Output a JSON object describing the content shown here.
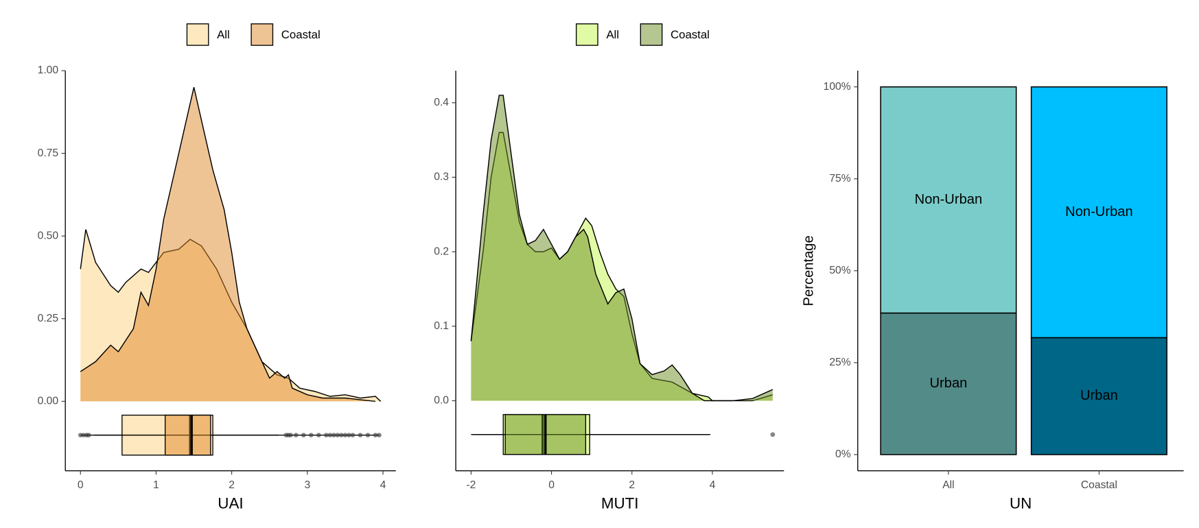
{
  "chart_data": [
    {
      "type": "density",
      "xlabel": "UAI",
      "xlim": [
        -0.2,
        4.17
      ],
      "xticks": [
        0,
        1,
        2,
        3,
        4
      ],
      "ylim": [
        -0.21,
        1.0
      ],
      "yticks": [
        {
          "value": 0,
          "label": "0.00"
        },
        {
          "value": 0.25,
          "label": "0.25"
        },
        {
          "value": 0.5,
          "label": "0.50"
        },
        {
          "value": 0.75,
          "label": "0.75"
        },
        {
          "value": 1,
          "label": "1.00"
        }
      ],
      "series": [
        {
          "name": "All",
          "color": "#fdd995",
          "opacity": 0.6,
          "x": [
            0,
            0.07,
            0.2,
            0.4,
            0.5,
            0.6,
            0.8,
            0.9,
            1.0,
            1.1,
            1.3,
            1.45,
            1.6,
            1.8,
            2.0,
            2.2,
            2.4,
            2.6,
            2.75,
            2.9,
            3.1,
            3.3,
            3.5,
            3.7,
            3.9,
            3.97
          ],
          "values": [
            0.4,
            0.52,
            0.42,
            0.35,
            0.33,
            0.36,
            0.4,
            0.39,
            0.42,
            0.45,
            0.46,
            0.49,
            0.47,
            0.4,
            0.3,
            0.22,
            0.12,
            0.08,
            0.07,
            0.04,
            0.03,
            0.015,
            0.02,
            0.01,
            0.015,
            0
          ],
          "box": {
            "low": 0,
            "q1": 0.55,
            "median": 1.45,
            "q3": 1.75,
            "high": 3.95
          },
          "outliers": [
            0,
            0.04,
            0.08,
            0.11,
            2.72,
            2.75,
            2.78,
            2.85,
            2.95,
            3.05,
            3.15,
            3.25,
            3.3,
            3.35,
            3.4,
            3.45,
            3.5,
            3.55,
            3.6,
            3.7,
            3.8,
            3.9,
            3.95
          ]
        },
        {
          "name": "Coastal",
          "color": "#e08a2c",
          "opacity": 0.5,
          "x": [
            0,
            0.2,
            0.4,
            0.5,
            0.7,
            0.8,
            0.9,
            1.0,
            1.1,
            1.25,
            1.4,
            1.5,
            1.6,
            1.75,
            1.9,
            2.0,
            2.1,
            2.2,
            2.4,
            2.5,
            2.6,
            2.7,
            2.75,
            2.8,
            3.0,
            3.2,
            3.5,
            3.9
          ],
          "values": [
            0.09,
            0.12,
            0.17,
            0.15,
            0.22,
            0.33,
            0.29,
            0.4,
            0.55,
            0.7,
            0.85,
            0.95,
            0.85,
            0.7,
            0.58,
            0.45,
            0.3,
            0.22,
            0.12,
            0.07,
            0.09,
            0.07,
            0.08,
            0.04,
            0.02,
            0.01,
            0.01,
            0
          ],
          "box": {
            "low": 0.18,
            "q1": 1.12,
            "median": 1.47,
            "q3": 1.72,
            "high": 2.62
          },
          "outliers": []
        }
      ]
    },
    {
      "type": "density",
      "xlabel": "MUTI",
      "xlim": [
        -2.38,
        5.78
      ],
      "xticks": [
        -2,
        0,
        2,
        4
      ],
      "ylim": [
        -0.094,
        0.443
      ],
      "yticks": [
        {
          "value": 0,
          "label": "0.0"
        },
        0.1,
        0.2,
        0.3,
        0.4
      ],
      "series": [
        {
          "name": "All",
          "color": "#d9f98f",
          "opacity": 0.8,
          "x": [
            -2,
            -1.7,
            -1.5,
            -1.3,
            -1.2,
            -1.0,
            -0.8,
            -0.6,
            -0.4,
            -0.2,
            0,
            0.2,
            0.4,
            0.6,
            0.85,
            1.0,
            1.2,
            1.4,
            1.6,
            1.8,
            2.0,
            2.2,
            2.5,
            3.0,
            3.5,
            3.9,
            4.0,
            4.5,
            5.0,
            5.5
          ],
          "values": [
            0.08,
            0.2,
            0.3,
            0.36,
            0.36,
            0.3,
            0.24,
            0.21,
            0.2,
            0.2,
            0.205,
            0.19,
            0.2,
            0.22,
            0.245,
            0.235,
            0.2,
            0.17,
            0.15,
            0.14,
            0.09,
            0.05,
            0.03,
            0.025,
            0.01,
            0.005,
            0,
            0,
            0,
            0.008
          ],
          "box": {
            "low": -2,
            "q1": -1.2,
            "median": -0.22,
            "q3": 0.95,
            "high": 3.95
          },
          "outliers": [
            5.5
          ]
        },
        {
          "name": "Coastal",
          "color": "#6b8e23",
          "opacity": 0.5,
          "x": [
            -2,
            -1.7,
            -1.5,
            -1.3,
            -1.2,
            -1.0,
            -0.8,
            -0.6,
            -0.4,
            -0.2,
            0,
            0.2,
            0.4,
            0.6,
            0.8,
            0.9,
            1.1,
            1.4,
            1.6,
            1.8,
            2.0,
            2.2,
            2.5,
            2.8,
            3.0,
            3.2,
            3.5,
            3.8,
            4.5,
            5.0,
            5.5
          ],
          "values": [
            0.08,
            0.25,
            0.35,
            0.41,
            0.41,
            0.33,
            0.25,
            0.21,
            0.215,
            0.23,
            0.21,
            0.19,
            0.2,
            0.22,
            0.23,
            0.22,
            0.17,
            0.13,
            0.145,
            0.15,
            0.11,
            0.05,
            0.035,
            0.04,
            0.048,
            0.035,
            0.01,
            0,
            0,
            0.003,
            0.015
          ],
          "box": {
            "low": -1.95,
            "q1": -1.15,
            "median": -0.15,
            "q3": 0.85,
            "high": 3.9
          },
          "outliers": []
        }
      ]
    },
    {
      "type": "stacked_bar",
      "xlabel": "UN",
      "ylabel": "Percentage",
      "categories": [
        "All",
        "Coastal"
      ],
      "ylim": [
        -4.4,
        104.4
      ],
      "yticks": [
        {
          "value": 0,
          "label": "0%"
        },
        {
          "value": 25,
          "label": "25%"
        },
        {
          "value": 50,
          "label": "50%"
        },
        {
          "value": 75,
          "label": "75%"
        },
        {
          "value": 100,
          "label": "100%"
        }
      ],
      "series": [
        {
          "name": "Urban",
          "colors": [
            "#538b89",
            "#006687"
          ],
          "values": [
            38.5,
            31.8
          ]
        },
        {
          "name": "Non-Urban",
          "colors": [
            "#7accca",
            "#00bfff"
          ],
          "values": [
            61.5,
            68.2
          ]
        }
      ]
    }
  ]
}
